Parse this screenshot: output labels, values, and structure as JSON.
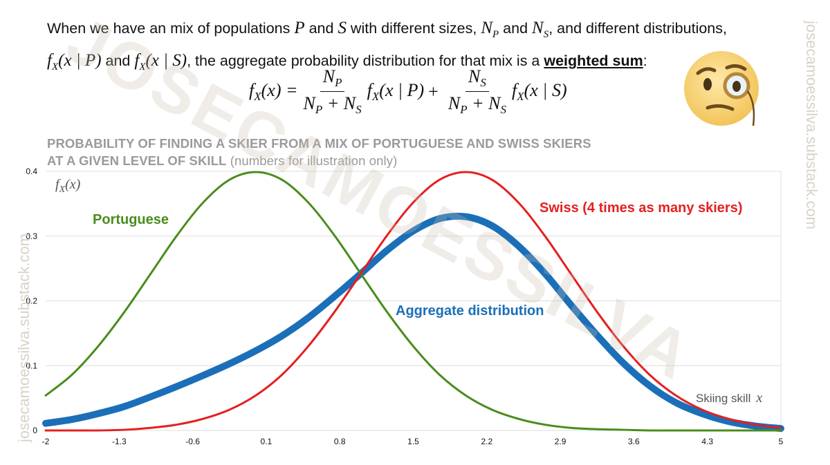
{
  "intro": {
    "line1_a": "When we have an mix of populations ",
    "P": "P",
    "and": " and ",
    "S": "S",
    "line1_b": " with different sizes, ",
    "NP": "N",
    "NP_sub": "P",
    "and2": " and ",
    "NS": "N",
    "NS_sub": "S",
    "line1_c": ", and different distributions,",
    "fxP": "f",
    "fxP_sub": "X",
    "fxP_arg": "(x | P)",
    "and3": " and ",
    "fxS": "f",
    "fxS_sub": "X",
    "fxS_arg": "(x | S)",
    "line2_b": ", the aggregate probability distribution for that mix is a ",
    "emphasis": "weighted sum",
    "colon": ":"
  },
  "formula": {
    "lhs": "f",
    "lhs_sub": "X",
    "lhs_arg": "(x) =",
    "frac1_num": "N",
    "frac1_num_sub": "P",
    "frac1_den_a": "N",
    "frac1_den_a_sub": "P",
    "frac1_den_plus": " + N",
    "frac1_den_b_sub": "S",
    "term1": "f",
    "term1_sub": "X",
    "term1_arg": "(x | P)",
    "plus": "+",
    "frac2_num": "N",
    "frac2_num_sub": "S",
    "frac2_den_a": "N",
    "frac2_den_a_sub": "P",
    "frac2_den_plus": " + N",
    "frac2_den_b_sub": "S",
    "term2": "f",
    "term2_sub": "X",
    "term2_arg": "(x | S)"
  },
  "chart_title": {
    "line1": "PROBABILITY OF FINDING A SKIER FROM A MIX OF PORTUGUESE AND SWISS SKIERS",
    "line2": "AT A GIVEN LEVEL OF SKILL",
    "line2_note": " (numbers for illustration only)"
  },
  "watermark": {
    "big": "JOSECAMOESSILVA",
    "side": "josecamoessilva.substack.com"
  },
  "emoji": "thinking-face-with-monocle-icon",
  "colors": {
    "portuguese": "#4a8c1c",
    "swiss": "#e51f1f",
    "aggregate": "#1b6fb8",
    "grid": "#dcdcdc",
    "title_gray": "#9a9a9a"
  },
  "chart_data": {
    "type": "line",
    "ylabel": "f_X(x)",
    "ylabel_main": "f",
    "ylabel_sub": "X",
    "ylabel_arg": "(x)",
    "xlabel": "Skiing skill",
    "xlabel_var": "x",
    "xlim": [
      -2,
      5
    ],
    "ylim": [
      0,
      0.4
    ],
    "x_ticks": [
      "-2",
      "-1.3",
      "-0.6",
      "0.1",
      "0.8",
      "1.5",
      "2.2",
      "2.9",
      "3.6",
      "4.3",
      "5"
    ],
    "y_ticks": [
      "0",
      "0.1",
      "0.2",
      "0.3",
      "0.4"
    ],
    "grid": true,
    "x": [
      -2.0,
      -1.75,
      -1.5,
      -1.25,
      -1.0,
      -0.75,
      -0.5,
      -0.25,
      0.0,
      0.25,
      0.5,
      0.75,
      1.0,
      1.25,
      1.5,
      1.75,
      2.0,
      2.25,
      2.5,
      2.75,
      3.0,
      3.25,
      3.5,
      3.75,
      4.0,
      4.25,
      4.5,
      4.75,
      5.0
    ],
    "series": [
      {
        "name": "Portuguese",
        "values": [
          0.054,
          0.086,
          0.13,
          0.183,
          0.242,
          0.301,
          0.352,
          0.387,
          0.399,
          0.387,
          0.352,
          0.301,
          0.242,
          0.183,
          0.13,
          0.086,
          0.054,
          0.032,
          0.018,
          0.009,
          0.004,
          0.002,
          0.001,
          0.0,
          0.0,
          0.0,
          0.0,
          0.0,
          0.0
        ]
      },
      {
        "name": "Swiss (4 times as many skiers)",
        "values": [
          0.0,
          0.0,
          0.0,
          0.001,
          0.004,
          0.009,
          0.018,
          0.032,
          0.054,
          0.086,
          0.13,
          0.183,
          0.242,
          0.301,
          0.352,
          0.387,
          0.399,
          0.387,
          0.352,
          0.301,
          0.242,
          0.183,
          0.13,
          0.086,
          0.054,
          0.032,
          0.018,
          0.009,
          0.004
        ]
      },
      {
        "name": "Aggregate distribution",
        "values": [
          0.011,
          0.017,
          0.026,
          0.037,
          0.052,
          0.068,
          0.085,
          0.103,
          0.123,
          0.146,
          0.174,
          0.207,
          0.242,
          0.278,
          0.308,
          0.327,
          0.33,
          0.316,
          0.285,
          0.243,
          0.194,
          0.147,
          0.104,
          0.069,
          0.043,
          0.026,
          0.014,
          0.007,
          0.003
        ]
      }
    ],
    "series_labels": {
      "portuguese": "Portuguese",
      "swiss": "Swiss (4 times as many skiers)",
      "aggregate": "Aggregate distribution"
    }
  }
}
